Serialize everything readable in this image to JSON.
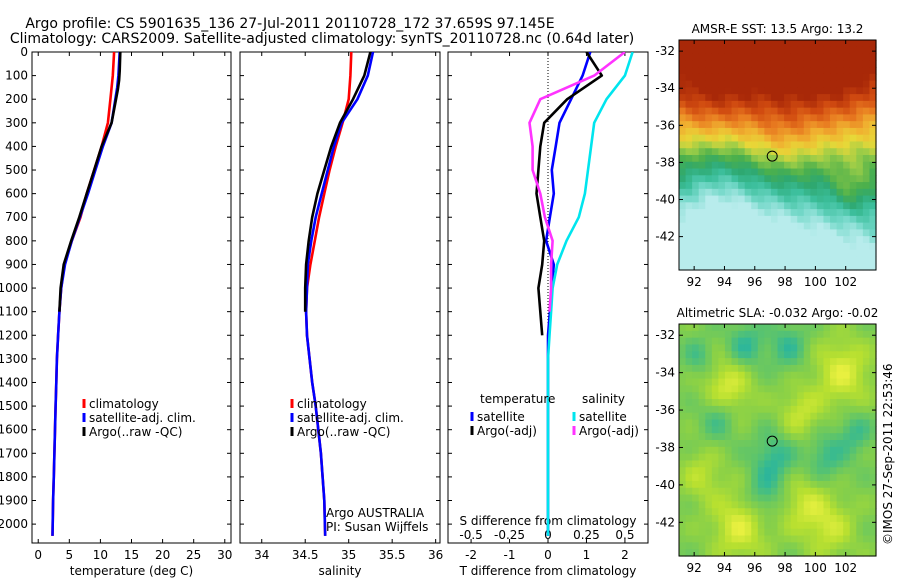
{
  "header": {
    "line1": "Argo profile: CS 5901635_136 27-Jul-2011 20110728_172 37.659S 97.145E",
    "line2": "Climatology: CARS2009. Satellite-adjusted climatology: synTS_20110728.nc (0.64d later)"
  },
  "colors": {
    "climatology": "#ff0000",
    "satellite": "#0000ff",
    "argo": "#000000",
    "diff_satellite": "#00e5ee",
    "diff_argo": "#ff33ff"
  },
  "chart_data": [
    {
      "type": "line",
      "id": "temperature",
      "xlabel": "temperature (deg C)",
      "xlim": [
        -1,
        31
      ],
      "ylim": [
        2080,
        0
      ],
      "xticks": [
        0,
        5,
        10,
        15,
        20,
        25,
        30
      ],
      "yticks": [
        0,
        100,
        200,
        300,
        400,
        500,
        600,
        700,
        800,
        900,
        1000,
        1100,
        1200,
        1300,
        1400,
        1500,
        1600,
        1700,
        1800,
        1900,
        2000
      ],
      "legend": [
        "climatology",
        "satellite-adj. clim.",
        "Argo(..raw -QC)"
      ],
      "series": [
        {
          "name": "climatology",
          "color": "#ff0000",
          "x": [
            12.2,
            12.0,
            11.6,
            11.2,
            10.2,
            9.0,
            7.8,
            6.8,
            5.4,
            4.2,
            3.7,
            3.4,
            3.2,
            3.0,
            2.9,
            2.8,
            2.7,
            2.6,
            2.5,
            2.4,
            2.3
          ],
          "y": [
            0,
            100,
            200,
            300,
            400,
            500,
            600,
            700,
            800,
            900,
            1000,
            1100,
            1200,
            1300,
            1400,
            1500,
            1600,
            1700,
            1800,
            1900,
            2050
          ]
        },
        {
          "name": "satellite-adj. clim.",
          "color": "#0000ff",
          "x": [
            13.1,
            12.9,
            12.7,
            11.8,
            10.4,
            9.2,
            8.0,
            6.7,
            5.4,
            4.3,
            3.7,
            3.4,
            3.2,
            3.0,
            2.9,
            2.8,
            2.7,
            2.6,
            2.5,
            2.4,
            2.3
          ],
          "y": [
            0,
            100,
            150,
            300,
            400,
            500,
            600,
            700,
            800,
            900,
            1000,
            1100,
            1200,
            1300,
            1400,
            1500,
            1600,
            1700,
            1800,
            1900,
            2050
          ]
        },
        {
          "name": "Argo(..raw -QC)",
          "color": "#000000",
          "x": [
            13.2,
            13.1,
            13.0,
            12.8,
            11.8,
            10.2,
            9.0,
            7.8,
            6.6,
            5.3,
            4.1,
            3.6,
            3.4
          ],
          "y": [
            0,
            80,
            120,
            160,
            300,
            400,
            500,
            600,
            700,
            800,
            900,
            1000,
            1100
          ]
        }
      ]
    },
    {
      "type": "line",
      "id": "salinity",
      "xlabel": "salinity",
      "xlim": [
        33.75,
        36.05
      ],
      "ylim": [
        2080,
        0
      ],
      "xticks": [
        34,
        34.5,
        35,
        35.5,
        36
      ],
      "xticklabels": [
        "34",
        "34.5",
        "35",
        "35.5",
        "36"
      ],
      "yticks": [
        0,
        100,
        200,
        300,
        400,
        500,
        600,
        700,
        800,
        900,
        1000,
        1100,
        1200,
        1300,
        1400,
        1500,
        1600,
        1700,
        1800,
        1900,
        2000
      ],
      "legend": [
        "climatology",
        "satellite-adj. clim.",
        "Argo(..raw -QC)"
      ],
      "annotation": [
        "Argo AUSTRALIA",
        "PI: Susan Wijffels"
      ],
      "series": [
        {
          "name": "climatology",
          "color": "#ff0000",
          "x": [
            35.03,
            35.02,
            35.0,
            34.93,
            34.85,
            34.78,
            34.72,
            34.66,
            34.61,
            34.56,
            34.52,
            34.51,
            34.52,
            34.55,
            34.58,
            34.62,
            34.65,
            34.68,
            34.7,
            34.72,
            34.73
          ],
          "y": [
            0,
            100,
            200,
            300,
            400,
            500,
            600,
            700,
            800,
            900,
            1000,
            1100,
            1200,
            1300,
            1400,
            1500,
            1600,
            1700,
            1800,
            1900,
            2050
          ]
        },
        {
          "name": "satellite-adj. clim.",
          "color": "#0000ff",
          "x": [
            35.28,
            35.22,
            35.1,
            34.92,
            34.83,
            34.76,
            34.69,
            34.62,
            34.57,
            34.53,
            34.52,
            34.51,
            34.52,
            34.55,
            34.58,
            34.62,
            34.65,
            34.68,
            34.7,
            34.72,
            34.73
          ],
          "y": [
            0,
            100,
            200,
            300,
            400,
            500,
            600,
            700,
            800,
            900,
            1000,
            1100,
            1200,
            1300,
            1400,
            1500,
            1600,
            1700,
            1800,
            1900,
            2050
          ]
        },
        {
          "name": "Argo(..raw -QC)",
          "color": "#000000",
          "x": [
            35.25,
            35.18,
            35.05,
            34.9,
            34.8,
            34.72,
            34.64,
            34.58,
            34.54,
            34.51,
            34.5,
            34.5
          ],
          "y": [
            0,
            100,
            200,
            300,
            400,
            500,
            600,
            700,
            800,
            900,
            1000,
            1100
          ]
        }
      ]
    },
    {
      "type": "line",
      "id": "difference",
      "xlabel": "T difference from climatology",
      "x2label": "S difference from climatology",
      "xlim": [
        -2.6,
        2.6
      ],
      "ylim": [
        2080,
        0
      ],
      "xticks": [
        -2,
        -1,
        0,
        1,
        2
      ],
      "x2ticks": [
        -0.5,
        -0.25,
        0,
        0.25,
        0.5
      ],
      "x2ticklabels": [
        "-0.5",
        "-0.25",
        "0",
        "0.25",
        "0.5"
      ],
      "yticks": [
        0,
        100,
        200,
        300,
        400,
        500,
        600,
        700,
        800,
        900,
        1000,
        1100,
        1200,
        1300,
        1400,
        1500,
        1600,
        1700,
        1800,
        1900,
        2000
      ],
      "legend_headers": [
        "temperature",
        "salinity"
      ],
      "legend": [
        "satellite",
        "Argo(-adj)",
        "satellite",
        "Argo(-adj)"
      ],
      "series": [
        {
          "name": "satellite",
          "group": "temperature",
          "color": "#0000ff",
          "x": [
            1.1,
            0.9,
            0.6,
            0.3,
            0.2,
            0.1,
            0.15,
            0.05,
            -0.05,
            0.15,
            0.1,
            0.05,
            0.0,
            0.0,
            0.0,
            0.0,
            0.0,
            0.0,
            0.0,
            0.0,
            0.0
          ],
          "y": [
            0,
            100,
            200,
            300,
            400,
            500,
            600,
            700,
            800,
            900,
            1000,
            1100,
            1200,
            1300,
            1400,
            1500,
            1600,
            1700,
            1800,
            1900,
            2050
          ]
        },
        {
          "name": "Argo(-adj)",
          "group": "temperature",
          "color": "#000000",
          "x": [
            1.0,
            1.4,
            0.5,
            -0.1,
            -0.2,
            -0.25,
            -0.3,
            -0.2,
            -0.1,
            -0.15,
            -0.25,
            -0.2,
            -0.15
          ],
          "y": [
            0,
            100,
            200,
            300,
            400,
            500,
            600,
            700,
            800,
            900,
            1000,
            1100,
            1200
          ]
        },
        {
          "name": "satellite",
          "group": "salinity",
          "color": "#00e5ee",
          "x": [
            0.55,
            0.5,
            0.38,
            0.3,
            0.28,
            0.26,
            0.24,
            0.2,
            0.12,
            0.06,
            0.03,
            0.02,
            0.01,
            0.0,
            0.0,
            0.0,
            0.0,
            0.0,
            0.0,
            0.0,
            0.0
          ],
          "y": [
            0,
            100,
            200,
            300,
            400,
            500,
            600,
            700,
            800,
            900,
            1000,
            1100,
            1200,
            1300,
            1400,
            1500,
            1600,
            1700,
            1800,
            1900,
            2050
          ]
        },
        {
          "name": "Argo(-adj)",
          "group": "salinity",
          "color": "#ff33ff",
          "x": [
            0.5,
            0.3,
            -0.05,
            -0.12,
            -0.1,
            -0.1,
            -0.05,
            -0.02,
            0.03,
            0.02,
            0.02,
            0.01
          ],
          "y": [
            0,
            100,
            200,
            300,
            400,
            500,
            600,
            700,
            800,
            900,
            1000,
            1100
          ]
        }
      ]
    },
    {
      "type": "heatmap",
      "id": "sst_map",
      "title": "AMSR-E SST: 13.5 Argo: 13.2",
      "xlim": [
        91,
        104
      ],
      "ylim": [
        -43.8,
        -31.4
      ],
      "xticks": [
        92,
        94,
        96,
        98,
        100,
        102
      ],
      "yticks": [
        -32,
        -34,
        -36,
        -38,
        -40,
        -42
      ],
      "marker": {
        "lon": 97.15,
        "lat": -37.66
      },
      "colormap": [
        "#b8ecec",
        "#73d8c8",
        "#3cbf9c",
        "#2ea870",
        "#4cb04c",
        "#98cc48",
        "#e8d838",
        "#f0b030",
        "#e87a20",
        "#d04a10",
        "#a82808"
      ],
      "features": [
        {
          "lon": 97.5,
          "lat": -31.6,
          "w": 8.0,
          "v": 0.45
        },
        {
          "lon": 101.8,
          "lat": -32.6,
          "w": 3.5,
          "v": 0.12
        },
        {
          "lon": 92.5,
          "lat": -34.0,
          "w": 3.0,
          "v": 0.12
        },
        {
          "lon": 97.8,
          "lat": -36.8,
          "w": 2.0,
          "v": 0.08
        },
        {
          "lon": 102.3,
          "lat": -39.4,
          "w": 1.2,
          "v": 0.15
        },
        {
          "lon": 98.0,
          "lat": -43.5,
          "w": 9.0,
          "v": -0.42
        },
        {
          "lon": 93.0,
          "lat": -41.5,
          "w": 4.0,
          "v": -0.22
        },
        {
          "lon": 93.6,
          "lat": -38.6,
          "w": 2.0,
          "v": -0.06
        }
      ]
    },
    {
      "type": "heatmap",
      "id": "sla_map",
      "title": "Altimetric SLA: -0.032 Argo: -0.02",
      "xlim": [
        91,
        104
      ],
      "ylim": [
        -43.8,
        -31.4
      ],
      "xticks": [
        92,
        94,
        96,
        98,
        100,
        102
      ],
      "yticks": [
        -32,
        -34,
        -36,
        -38,
        -40,
        -42
      ],
      "marker": {
        "lon": 97.15,
        "lat": -37.66
      },
      "colormap": [
        "#18a0a8",
        "#30b898",
        "#5cc46c",
        "#88d048",
        "#b8e030",
        "#e8f040"
      ],
      "features": [
        {
          "lon": 94.2,
          "lat": -34.8,
          "w": 1.6,
          "v": 0.4
        },
        {
          "lon": 101.8,
          "lat": -34.0,
          "w": 1.8,
          "v": 0.4
        },
        {
          "lon": 99.0,
          "lat": -36.2,
          "w": 1.4,
          "v": 0.3
        },
        {
          "lon": 95.0,
          "lat": -42.2,
          "w": 1.8,
          "v": 0.4
        },
        {
          "lon": 99.2,
          "lat": -41.0,
          "w": 1.6,
          "v": 0.3
        },
        {
          "lon": 101.0,
          "lat": -42.3,
          "w": 1.6,
          "v": 0.3
        },
        {
          "lon": 92.5,
          "lat": -39.5,
          "w": 1.4,
          "v": 0.25
        },
        {
          "lon": 95.4,
          "lat": -32.6,
          "w": 1.2,
          "v": -0.35
        },
        {
          "lon": 98.2,
          "lat": -32.6,
          "w": 1.2,
          "v": -0.3
        },
        {
          "lon": 93.6,
          "lat": -36.4,
          "w": 1.2,
          "v": -0.3
        },
        {
          "lon": 97.3,
          "lat": -38.6,
          "w": 1.4,
          "v": -0.35
        },
        {
          "lon": 100.7,
          "lat": -38.5,
          "w": 1.3,
          "v": -0.3
        },
        {
          "lon": 96.6,
          "lat": -40.6,
          "w": 1.2,
          "v": -0.3
        },
        {
          "lon": 102.6,
          "lat": -37.2,
          "w": 1.1,
          "v": -0.28
        },
        {
          "lon": 92.3,
          "lat": -33.2,
          "w": 1.0,
          "v": -0.25
        }
      ]
    }
  ],
  "footer": {
    "credit": "©IMOS 27-Sep-2011 22:53:46"
  }
}
